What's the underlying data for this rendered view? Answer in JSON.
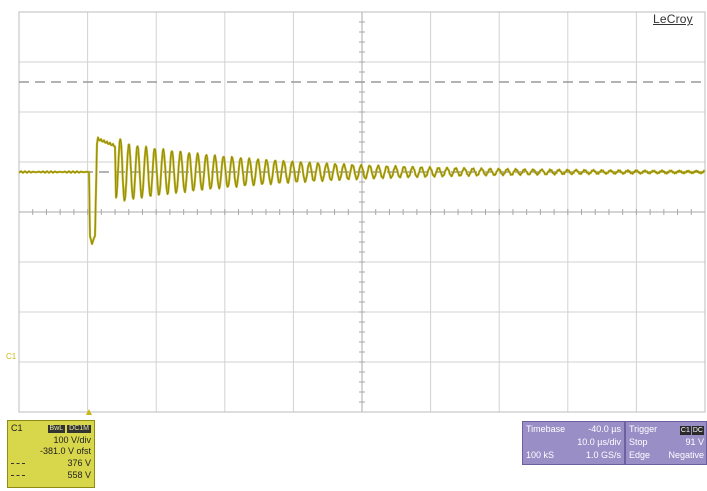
{
  "brand": {
    "logo": "LeCroy"
  },
  "colors": {
    "trace": "#bdb21a",
    "trace_dark": "#6f6a10",
    "grid": "#c8c8c8",
    "channel_box": "#d8d64a",
    "info_box": "#9a8ec7"
  },
  "waveform": {
    "baseline_v": 0,
    "pulse_high_v": 65,
    "pulse_low_v": -140,
    "ring_amplitude_v": 60
  },
  "channel": {
    "marker": "C1",
    "label": "C1",
    "badges": [
      "BwL",
      "DC1M"
    ],
    "vdiv": "100 V/div",
    "offset": "-381.0 V ofst",
    "measure1": "376 V",
    "measure2": "558 V"
  },
  "timebase": {
    "title": "Timebase",
    "delay": "-40.0 µs",
    "tdiv": "10.0 µs/div",
    "samples": "100 kS",
    "rate": "1.0 GS/s"
  },
  "trigger": {
    "title": "Trigger",
    "badges": [
      "C1",
      "DC"
    ],
    "mode": "Stop",
    "level": "91 V",
    "type": "Edge",
    "slope": "Negative"
  }
}
